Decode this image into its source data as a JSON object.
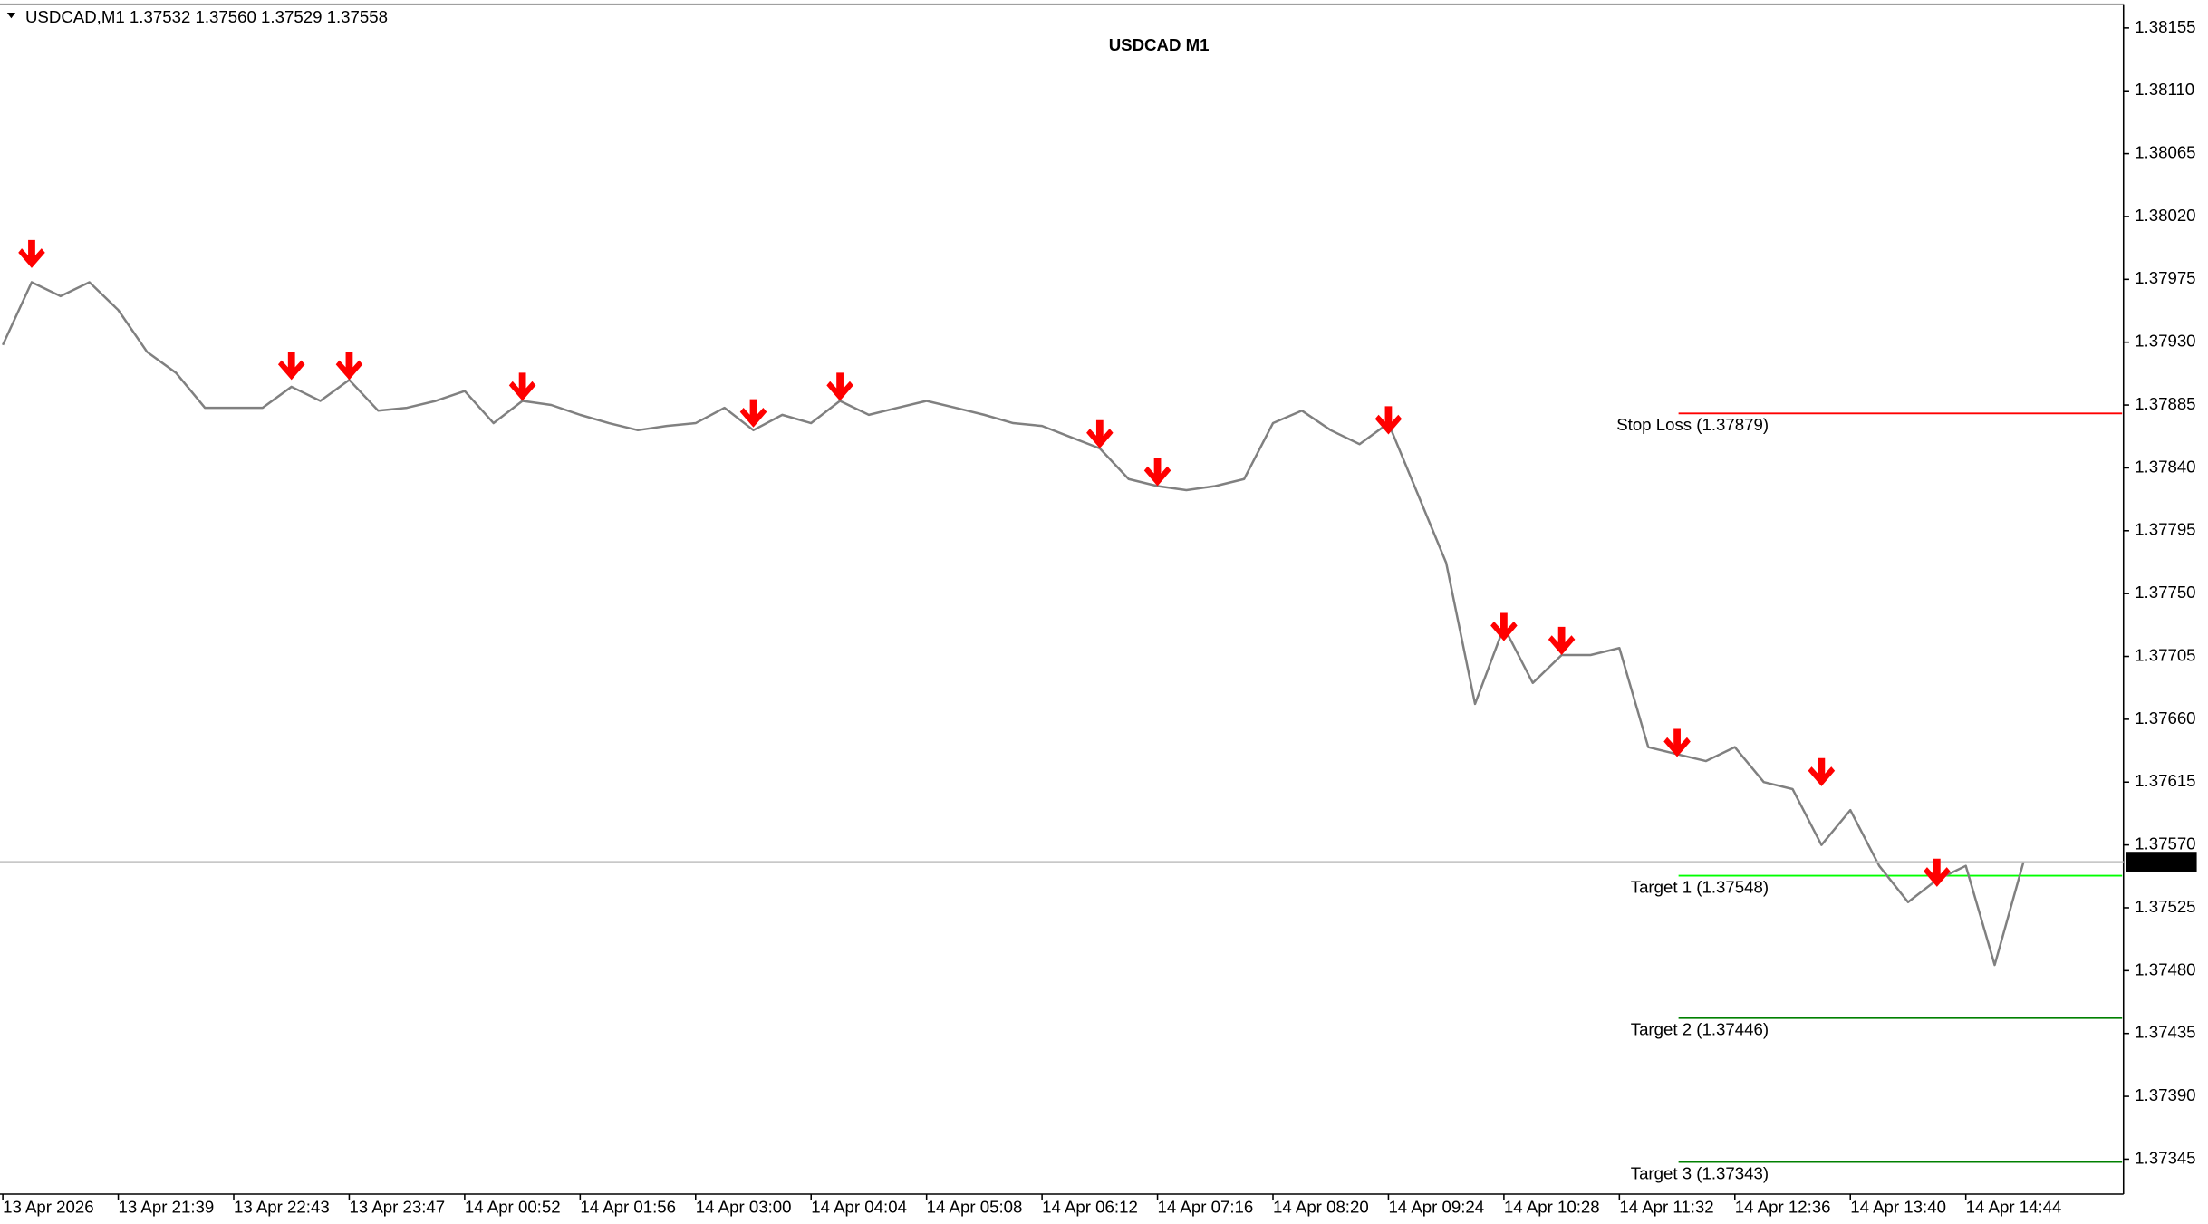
{
  "chart_data": {
    "type": "line",
    "title": "USDCAD M1",
    "symbol_info": "USDCAD,M1  1.37532 1.37560 1.37529 1.37558",
    "categories": [
      "13 Apr 2026",
      null,
      null,
      null,
      "13 Apr 21:39",
      null,
      null,
      null,
      "13 Apr 22:43",
      null,
      null,
      null,
      "13 Apr 23:47",
      null,
      null,
      null,
      "14 Apr 00:52",
      null,
      null,
      null,
      "14 Apr 01:56",
      null,
      null,
      null,
      "14 Apr 03:00",
      null,
      null,
      null,
      "14 Apr 04:04",
      null,
      null,
      null,
      "14 Apr 05:08",
      null,
      null,
      null,
      "14 Apr 06:12",
      null,
      null,
      null,
      "14 Apr 07:16",
      null,
      null,
      null,
      "14 Apr 08:20",
      null,
      null,
      null,
      "14 Apr 09:24",
      null,
      null,
      null,
      "14 Apr 10:28",
      null,
      null,
      null,
      "14 Apr 11:32",
      null,
      null,
      null,
      "14 Apr 12:36",
      null,
      null,
      null,
      "14 Apr 13:40",
      null,
      null,
      null,
      "14 Apr 14:44",
      null,
      null
    ],
    "series": [
      {
        "color": "#808080",
        "values": [
          1.37928,
          1.37973,
          1.37963,
          1.37973,
          1.37953,
          1.37923,
          1.37908,
          1.37883,
          1.37883,
          1.37883,
          1.37898,
          1.37888,
          1.37903,
          1.37881,
          1.37883,
          1.37888,
          1.37895,
          1.37872,
          1.37888,
          1.37885,
          1.37878,
          1.37872,
          1.37867,
          1.3787,
          1.37872,
          1.37883,
          1.37867,
          1.37878,
          1.37872,
          1.37888,
          1.37878,
          1.37883,
          1.37888,
          1.37883,
          1.37878,
          1.37872,
          1.3787,
          1.37862,
          1.37854,
          1.37832,
          1.37827,
          1.37824,
          1.37827,
          1.37832,
          1.37872,
          1.37881,
          1.37867,
          1.37857,
          1.37872,
          1.37822,
          1.37772,
          1.37671,
          1.37726,
          1.37686,
          1.37706,
          1.37706,
          1.37711,
          1.3764,
          1.37635,
          1.3763,
          1.3764,
          1.37615,
          1.3761,
          1.3757,
          1.37595,
          1.37555,
          1.37529,
          1.37545,
          1.37555,
          1.37484,
          1.37558
        ]
      }
    ],
    "signals": {
      "color": "#ff0000",
      "values": [
        null,
        1.37983,
        null,
        null,
        null,
        null,
        null,
        null,
        null,
        null,
        1.37903,
        null,
        1.37903,
        null,
        null,
        null,
        null,
        null,
        1.37888,
        null,
        null,
        null,
        null,
        null,
        null,
        null,
        1.37869,
        null,
        null,
        1.37888,
        null,
        null,
        null,
        null,
        null,
        null,
        null,
        null,
        1.37854,
        null,
        1.37827,
        null,
        null,
        null,
        null,
        null,
        null,
        null,
        1.37864,
        null,
        null,
        null,
        1.37716,
        null,
        1.37706,
        null,
        null,
        null,
        1.37633,
        null,
        null,
        null,
        null,
        1.37612,
        null,
        null,
        null,
        1.3754,
        null,
        null,
        null
      ]
    },
    "levels": [
      {
        "label": "Stop Loss (1.37879)",
        "value": 1.37879,
        "color": "#ff0000"
      },
      {
        "label": "Target 1 (1.37548)",
        "value": 1.37548,
        "color": "#00ff00"
      },
      {
        "label": "Target 2 (1.37446)",
        "value": 1.37446,
        "color": "#008000"
      },
      {
        "label": "Target 3 (1.37343)",
        "value": 1.37343,
        "color": "#008000"
      }
    ],
    "ylim": [
      1.3732,
      1.38172
    ],
    "yticks": [
      1.38155,
      {
        "value": 1.3811,
        "label": "1.38110"
      },
      1.38065,
      {
        "value": 1.3802,
        "label": "1.38020"
      },
      1.37975,
      {
        "value": 1.3793,
        "label": "1.37930"
      },
      1.37885,
      {
        "value": 1.3784,
        "label": "1.37840"
      },
      1.37795,
      {
        "value": 1.3775,
        "label": "1.37750"
      },
      1.37705,
      {
        "value": 1.3766,
        "label": "1.37660"
      },
      1.37615,
      {
        "value": 1.3757,
        "label": "1.37570"
      },
      1.37525,
      {
        "value": 1.3748,
        "label": "1.37480"
      },
      1.37435,
      {
        "value": 1.3739,
        "label": "1.37390"
      },
      1.37345
    ],
    "grid": false
  }
}
